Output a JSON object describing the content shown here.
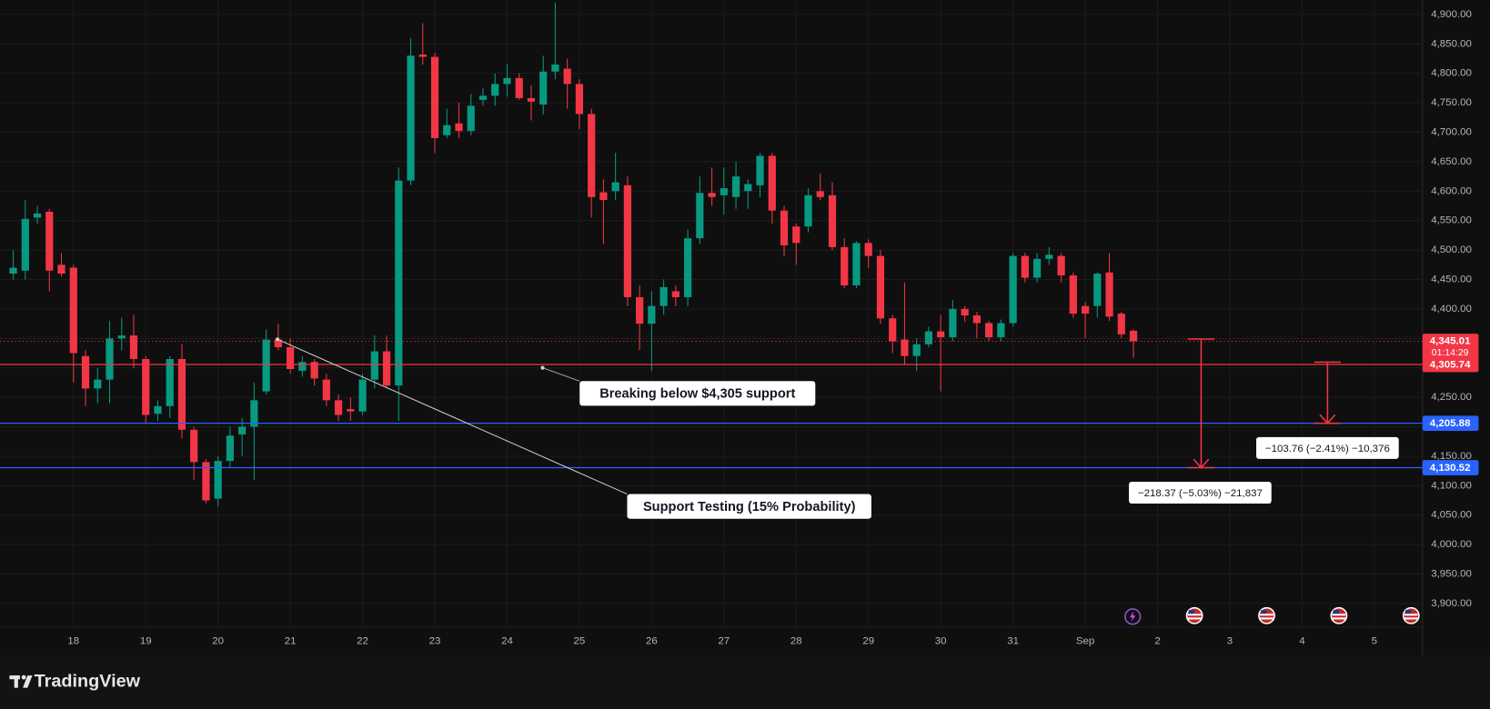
{
  "chart_data": {
    "type": "candlestick",
    "open": [
      4460,
      4465,
      4555,
      4565,
      4475,
      4470,
      4320,
      4265,
      4280,
      4350,
      4355,
      4315,
      4222,
      4235,
      4315,
      4195,
      4140,
      4078,
      4142,
      4187,
      4200,
      4260,
      4348,
      4335,
      4295,
      4310,
      4280,
      4245,
      4230,
      4226,
      4280,
      4328,
      4270,
      4618,
      4832,
      4828,
      4695,
      4715,
      4702,
      4755,
      4762,
      4782,
      4792,
      4758,
      4747,
      4803,
      4808,
      4782,
      4731,
      4598,
      4600,
      4610,
      4420,
      4375,
      4405,
      4430,
      4420,
      4520,
      4597,
      4593,
      4590,
      4600,
      4610,
      4660,
      4567,
      4540,
      4540,
      4600,
      4593,
      4505,
      4440,
      4512,
      4490,
      4384,
      4348,
      4320,
      4340,
      4362,
      4352,
      4400,
      4389,
      4376,
      4352,
      4376,
      4490,
      4453,
      4485,
      4490,
      4457,
      4405,
      4405,
      4462,
      4392,
      4363
    ],
    "high": [
      4500,
      4585,
      4575,
      4570,
      4495,
      4475,
      4330,
      4300,
      4380,
      4385,
      4390,
      4320,
      4245,
      4320,
      4340,
      4200,
      4145,
      4150,
      4200,
      4215,
      4275,
      4365,
      4375,
      4350,
      4320,
      4315,
      4290,
      4255,
      4250,
      4290,
      4355,
      4355,
      4640,
      4860,
      4885,
      4835,
      4740,
      4750,
      4765,
      4775,
      4800,
      4815,
      4800,
      4780,
      4830,
      4920,
      4825,
      4790,
      4740,
      4620,
      4665,
      4625,
      4440,
      4430,
      4450,
      4440,
      4535,
      4625,
      4640,
      4640,
      4650,
      4620,
      4665,
      4665,
      4575,
      4545,
      4605,
      4630,
      4615,
      4520,
      4515,
      4518,
      4500,
      4390,
      4445,
      4350,
      4370,
      4390,
      4415,
      4405,
      4395,
      4380,
      4382,
      4495,
      4495,
      4495,
      4505,
      4495,
      4462,
      4412,
      4462,
      4495,
      4395,
      4365
    ],
    "low": [
      4450,
      4450,
      4545,
      4430,
      4455,
      4275,
      4235,
      4240,
      4240,
      4330,
      4300,
      4205,
      4210,
      4215,
      4180,
      4110,
      4070,
      4065,
      4130,
      4150,
      4110,
      4255,
      4330,
      4290,
      4285,
      4270,
      4235,
      4210,
      4210,
      4220,
      4265,
      4265,
      4210,
      4610,
      4815,
      4665,
      4690,
      4690,
      4695,
      4745,
      4745,
      4760,
      4755,
      4720,
      4730,
      4790,
      4740,
      4705,
      4555,
      4510,
      4585,
      4405,
      4330,
      4295,
      4390,
      4405,
      4405,
      4510,
      4575,
      4560,
      4570,
      4570,
      4590,
      4545,
      4490,
      4475,
      4530,
      4585,
      4500,
      4435,
      4435,
      4470,
      4375,
      4325,
      4305,
      4295,
      4335,
      4260,
      4345,
      4378,
      4350,
      4345,
      4345,
      4370,
      4445,
      4445,
      4475,
      4445,
      4385,
      4350,
      4385,
      4380,
      4350,
      4317
    ],
    "close": [
      4470,
      4553,
      4562,
      4465,
      4460,
      4325,
      4265,
      4280,
      4350,
      4355,
      4315,
      4220,
      4235,
      4315,
      4195,
      4140,
      4075,
      4142,
      4185,
      4200,
      4245,
      4348,
      4335,
      4298,
      4310,
      4282,
      4245,
      4220,
      4226,
      4280,
      4328,
      4270,
      4618,
      4830,
      4828,
      4690,
      4712,
      4702,
      4745,
      4762,
      4782,
      4792,
      4758,
      4752,
      4803,
      4815,
      4782,
      4731,
      4590,
      4585,
      4615,
      4420,
      4375,
      4405,
      4437,
      4420,
      4520,
      4597,
      4590,
      4605,
      4625,
      4612,
      4660,
      4567,
      4508,
      4512,
      4593,
      4590,
      4505,
      4440,
      4512,
      4490,
      4384,
      4345,
      4320,
      4340,
      4362,
      4352,
      4400,
      4389,
      4376,
      4352,
      4376,
      4490,
      4453,
      4485,
      4492,
      4457,
      4392,
      4392,
      4460,
      4387,
      4357,
      4345.01
    ],
    "up_color": "#089981",
    "down_color": "#f23645",
    "xlim": [
      -1.1,
      117
    ],
    "xticks": [
      {
        "value": 5,
        "label": "18"
      },
      {
        "value": 11,
        "label": "19"
      },
      {
        "value": 17,
        "label": "20"
      },
      {
        "value": 23,
        "label": "21"
      },
      {
        "value": 29,
        "label": "22"
      },
      {
        "value": 35,
        "label": "23"
      },
      {
        "value": 41,
        "label": "24"
      },
      {
        "value": 47,
        "label": "25"
      },
      {
        "value": 53,
        "label": "26"
      },
      {
        "value": 59,
        "label": "27"
      },
      {
        "value": 65,
        "label": "28"
      },
      {
        "value": 71,
        "label": "29"
      },
      {
        "value": 77,
        "label": "30"
      },
      {
        "value": 83,
        "label": "31"
      },
      {
        "value": 89,
        "label": "Sep"
      },
      {
        "value": 95,
        "label": "2"
      },
      {
        "value": 101,
        "label": "3"
      },
      {
        "value": 107,
        "label": "4"
      },
      {
        "value": 113,
        "label": "5"
      }
    ],
    "ylim": [
      3860,
      4924
    ],
    "yticks": [
      {
        "value": 3900,
        "label": "3,900.00"
      },
      {
        "value": 3950,
        "label": "3,950.00"
      },
      {
        "value": 4000,
        "label": "4,000.00"
      },
      {
        "value": 4050,
        "label": "4,050.00"
      },
      {
        "value": 4100,
        "label": "4,100.00"
      },
      {
        "value": 4150,
        "label": "4,150.00"
      },
      {
        "value": 4200,
        "label": "4,200.00"
      },
      {
        "value": 4250,
        "label": "4,250.00"
      },
      {
        "value": 4300,
        "label": "4,300.00"
      },
      {
        "value": 4350,
        "label": "4,350.00"
      },
      {
        "value": 4400,
        "label": "4,400.00"
      },
      {
        "value": 4450,
        "label": "4,450.00"
      },
      {
        "value": 4500,
        "label": "4,500.00"
      },
      {
        "value": 4550,
        "label": "4,550.00"
      },
      {
        "value": 4600,
        "label": "4,600.00"
      },
      {
        "value": 4650,
        "label": "4,650.00"
      },
      {
        "value": 4700,
        "label": "4,700.00"
      },
      {
        "value": 4750,
        "label": "4,750.00"
      },
      {
        "value": 4800,
        "label": "4,800.00"
      },
      {
        "value": 4850,
        "label": "4,850.00"
      },
      {
        "value": 4900,
        "label": "4,900.00"
      }
    ],
    "grid": true,
    "last_price": {
      "value": 4345.01,
      "label": "4,345.01",
      "countdown": "01:14:29",
      "color": "#f23645"
    },
    "price_lines": [
      {
        "value": 4305.74,
        "label": "4,305.74",
        "color": "#f23645"
      },
      {
        "value": 4205.88,
        "label": "4,205.88",
        "color": "#2962ff"
      },
      {
        "value": 4130.52,
        "label": "4,130.52",
        "color": "#2962ff"
      }
    ],
    "annotations": [
      {
        "text": "Breaking below $4,305 support"
      },
      {
        "text": "Support Testing (15% Probability)"
      }
    ],
    "measurements": [
      {
        "to": 4130.52,
        "change": -218.37,
        "percent": -5.03,
        "ticks": -21837,
        "label": "−218.37 (−5.03%) −21,837"
      },
      {
        "to": 4205.88,
        "change": -103.76,
        "percent": -2.41,
        "ticks": -10376,
        "label": "−103.76 (−2.41%) −10,376"
      }
    ]
  },
  "branding": "TradingView"
}
